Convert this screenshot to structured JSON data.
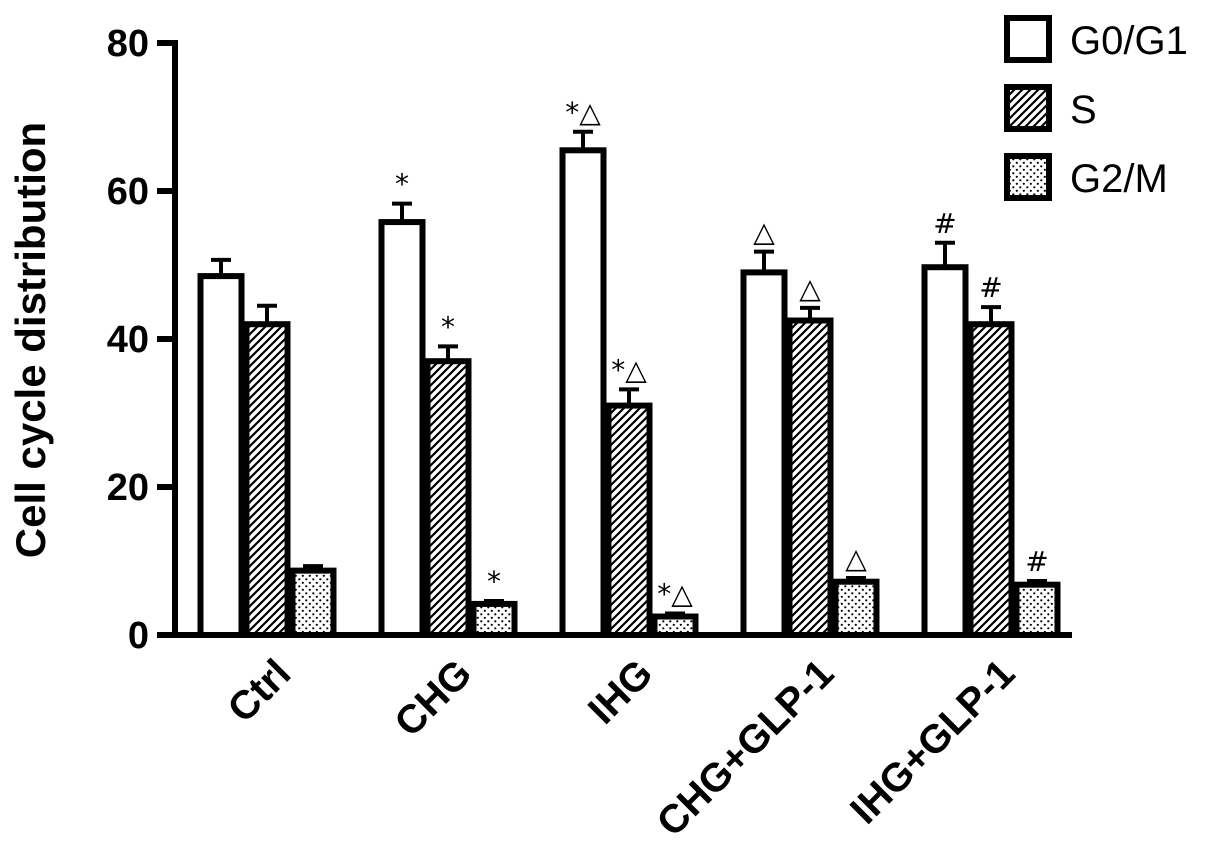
{
  "chart_data": {
    "type": "bar",
    "title": "",
    "xlabel": "",
    "ylabel": "Cell cycle distribution",
    "ylim": [
      0,
      80
    ],
    "yticks": [
      0,
      20,
      40,
      60,
      80
    ],
    "grid": false,
    "legend_position": "top-right",
    "categories": [
      "Ctrl",
      "CHG",
      "IHG",
      "CHG+GLP-1",
      "IHG+GLP-1"
    ],
    "series": [
      {
        "name": "G0/G1",
        "pattern": "open",
        "values": [
          48.5,
          55.8,
          65.5,
          49.0,
          49.7
        ],
        "errors": [
          2.2,
          2.5,
          2.5,
          2.8,
          3.3
        ],
        "annotations": [
          "",
          "*",
          "*△",
          "△",
          "#"
        ]
      },
      {
        "name": "S",
        "pattern": "diagonal-hatch",
        "values": [
          42.0,
          37.0,
          31.0,
          42.5,
          42.0
        ],
        "errors": [
          2.5,
          2.0,
          2.2,
          1.7,
          2.3
        ],
        "annotations": [
          "",
          "*",
          "*△",
          "△",
          "#"
        ]
      },
      {
        "name": "G2/M",
        "pattern": "dotted",
        "values": [
          8.7,
          4.2,
          2.5,
          7.2,
          6.8
        ],
        "errors": [
          0.6,
          0.4,
          0.4,
          0.5,
          0.5
        ],
        "annotations": [
          "",
          "*",
          "*△",
          "△",
          "#"
        ]
      }
    ]
  }
}
